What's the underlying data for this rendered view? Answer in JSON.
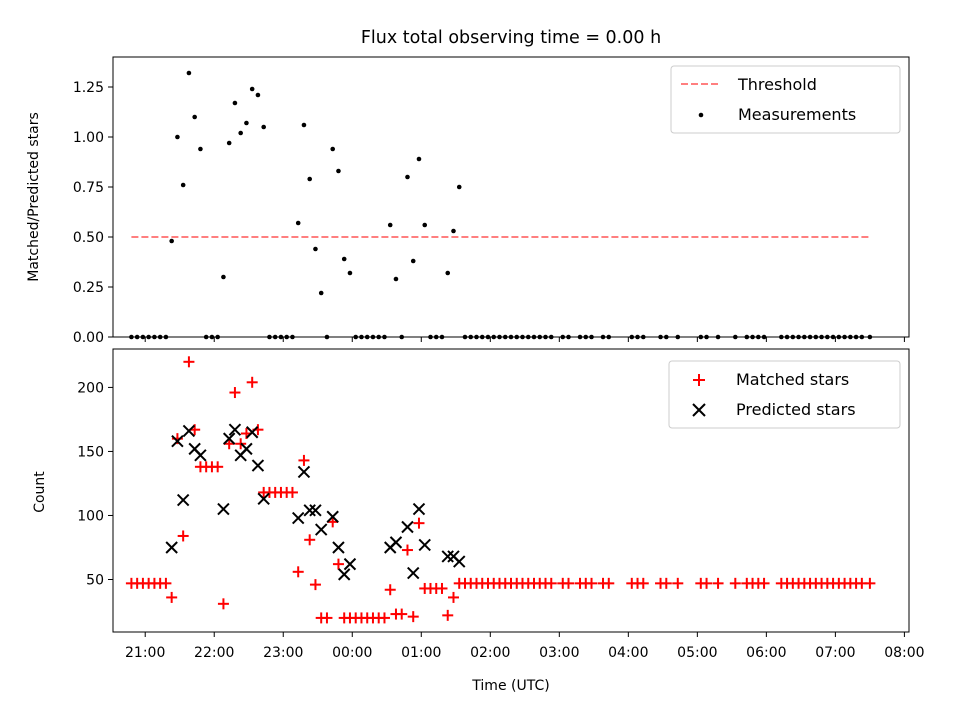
{
  "chart_data": [
    {
      "type": "scatter",
      "title": "Flux total observing time = 0.00 h",
      "xlabel": "",
      "ylabel": "Matched/Predicted stars",
      "xlim": [
        "20:32",
        "08:04"
      ],
      "ylim": [
        0,
        1.4
      ],
      "yticks": [
        0,
        0.25,
        0.5,
        0.75,
        1.0,
        1.25
      ],
      "ytick_labels": [
        "0.00",
        "0.25",
        "0.50",
        "0.75",
        "1.00",
        "1.25"
      ],
      "legend_position": "top-right",
      "series": [
        {
          "name": "Threshold",
          "style": "dashed-line",
          "color": "#ff7f7f",
          "x": [
            "20:48",
            "07:30"
          ],
          "y": [
            0.5,
            0.5
          ]
        },
        {
          "name": "Measurements",
          "style": "dot",
          "color": "#000000",
          "points": [
            [
              "20:48",
              0
            ],
            [
              "20:53",
              0
            ],
            [
              "20:58",
              0
            ],
            [
              "21:03",
              0
            ],
            [
              "21:08",
              0
            ],
            [
              "21:13",
              0
            ],
            [
              "21:18",
              0
            ],
            [
              "21:23",
              0.48
            ],
            [
              "21:28",
              1.0
            ],
            [
              "21:33",
              0.76
            ],
            [
              "21:38",
              1.32
            ],
            [
              "21:43",
              1.1
            ],
            [
              "21:48",
              0.94
            ],
            [
              "21:53",
              0
            ],
            [
              "21:58",
              0
            ],
            [
              "22:03",
              0
            ],
            [
              "22:08",
              0.3
            ],
            [
              "22:13",
              0.97
            ],
            [
              "22:18",
              1.17
            ],
            [
              "22:23",
              1.02
            ],
            [
              "22:28",
              1.07
            ],
            [
              "22:33",
              1.24
            ],
            [
              "22:38",
              1.21
            ],
            [
              "22:43",
              1.05
            ],
            [
              "22:48",
              0
            ],
            [
              "22:53",
              0
            ],
            [
              "22:58",
              0
            ],
            [
              "23:03",
              0
            ],
            [
              "23:08",
              0
            ],
            [
              "23:13",
              0.57
            ],
            [
              "23:18",
              1.06
            ],
            [
              "23:23",
              0.79
            ],
            [
              "23:28",
              0.44
            ],
            [
              "23:33",
              0.22
            ],
            [
              "23:38",
              0
            ],
            [
              "23:43",
              0.94
            ],
            [
              "23:48",
              0.83
            ],
            [
              "23:53",
              0.39
            ],
            [
              "23:58",
              0.32
            ],
            [
              "00:03",
              0
            ],
            [
              "00:08",
              0
            ],
            [
              "00:13",
              0
            ],
            [
              "00:18",
              0
            ],
            [
              "00:23",
              0
            ],
            [
              "00:28",
              0
            ],
            [
              "00:33",
              0.56
            ],
            [
              "00:38",
              0.29
            ],
            [
              "00:43",
              0
            ],
            [
              "00:48",
              0.8
            ],
            [
              "00:53",
              0.38
            ],
            [
              "00:58",
              0.89
            ],
            [
              "01:03",
              0.56
            ],
            [
              "01:08",
              0
            ],
            [
              "01:13",
              0
            ],
            [
              "01:18",
              0
            ],
            [
              "01:23",
              0.32
            ],
            [
              "01:28",
              0.53
            ],
            [
              "01:33",
              0.75
            ],
            [
              "01:38",
              0
            ],
            [
              "01:43",
              0
            ],
            [
              "01:48",
              0
            ],
            [
              "01:53",
              0
            ],
            [
              "01:58",
              0
            ],
            [
              "02:03",
              0
            ],
            [
              "02:08",
              0
            ],
            [
              "02:13",
              0
            ],
            [
              "02:18",
              0
            ],
            [
              "02:23",
              0
            ],
            [
              "02:28",
              0
            ],
            [
              "02:33",
              0
            ],
            [
              "02:38",
              0
            ],
            [
              "02:43",
              0
            ],
            [
              "02:48",
              0
            ],
            [
              "02:53",
              0
            ],
            [
              "03:03",
              0
            ],
            [
              "03:08",
              0
            ],
            [
              "03:18",
              0
            ],
            [
              "03:23",
              0
            ],
            [
              "03:28",
              0
            ],
            [
              "03:38",
              0
            ],
            [
              "03:43",
              0
            ],
            [
              "04:03",
              0
            ],
            [
              "04:08",
              0
            ],
            [
              "04:13",
              0
            ],
            [
              "04:28",
              0
            ],
            [
              "04:33",
              0
            ],
            [
              "04:43",
              0
            ],
            [
              "05:03",
              0
            ],
            [
              "05:08",
              0
            ],
            [
              "05:18",
              0
            ],
            [
              "05:33",
              0
            ],
            [
              "05:43",
              0
            ],
            [
              "05:48",
              0
            ],
            [
              "05:53",
              0
            ],
            [
              "05:58",
              0
            ],
            [
              "06:13",
              0
            ],
            [
              "06:18",
              0
            ],
            [
              "06:23",
              0
            ],
            [
              "06:28",
              0
            ],
            [
              "06:33",
              0
            ],
            [
              "06:38",
              0
            ],
            [
              "06:43",
              0
            ],
            [
              "06:48",
              0
            ],
            [
              "06:53",
              0
            ],
            [
              "06:58",
              0
            ],
            [
              "07:03",
              0
            ],
            [
              "07:08",
              0
            ],
            [
              "07:13",
              0
            ],
            [
              "07:18",
              0
            ],
            [
              "07:23",
              0
            ],
            [
              "07:30",
              0
            ]
          ]
        }
      ]
    },
    {
      "type": "scatter",
      "title": "",
      "xlabel": "Time (UTC)",
      "ylabel": "Count",
      "xlim": [
        "20:32",
        "08:04"
      ],
      "ylim": [
        9,
        230
      ],
      "xticks": [
        "21:00",
        "22:00",
        "23:00",
        "00:00",
        "01:00",
        "02:00",
        "03:00",
        "04:00",
        "05:00",
        "06:00",
        "07:00",
        "08:00"
      ],
      "yticks": [
        50,
        100,
        150,
        200
      ],
      "ytick_labels": [
        "50",
        "100",
        "150",
        "200"
      ],
      "legend_position": "top-right",
      "series": [
        {
          "name": "Matched stars",
          "marker": "plus",
          "color": "#ff0000",
          "points": [
            [
              "20:48",
              47
            ],
            [
              "20:53",
              47
            ],
            [
              "20:58",
              47
            ],
            [
              "21:03",
              47
            ],
            [
              "21:08",
              47
            ],
            [
              "21:13",
              47
            ],
            [
              "21:18",
              47
            ],
            [
              "21:23",
              36
            ],
            [
              "21:28",
              160
            ],
            [
              "21:33",
              84
            ],
            [
              "21:38",
              220
            ],
            [
              "21:43",
              167
            ],
            [
              "21:48",
              138
            ],
            [
              "21:53",
              138
            ],
            [
              "21:58",
              138
            ],
            [
              "22:03",
              138
            ],
            [
              "22:08",
              31
            ],
            [
              "22:13",
              156
            ],
            [
              "22:18",
              196
            ],
            [
              "22:23",
              156
            ],
            [
              "22:28",
              164
            ],
            [
              "22:33",
              204
            ],
            [
              "22:38",
              167
            ],
            [
              "22:43",
              118
            ],
            [
              "22:48",
              118
            ],
            [
              "22:53",
              118
            ],
            [
              "22:58",
              118
            ],
            [
              "23:03",
              118
            ],
            [
              "23:08",
              118
            ],
            [
              "23:13",
              56
            ],
            [
              "23:18",
              143
            ],
            [
              "23:23",
              81
            ],
            [
              "23:28",
              46
            ],
            [
              "23:33",
              20
            ],
            [
              "23:38",
              20
            ],
            [
              "23:43",
              95
            ],
            [
              "23:48",
              62
            ],
            [
              "23:53",
              20
            ],
            [
              "23:58",
              20
            ],
            [
              "00:03",
              20
            ],
            [
              "00:08",
              20
            ],
            [
              "00:13",
              20
            ],
            [
              "00:18",
              20
            ],
            [
              "00:23",
              20
            ],
            [
              "00:28",
              20
            ],
            [
              "00:33",
              42
            ],
            [
              "00:38",
              23
            ],
            [
              "00:43",
              23
            ],
            [
              "00:48",
              73
            ],
            [
              "00:53",
              21
            ],
            [
              "00:58",
              94
            ],
            [
              "01:03",
              43
            ],
            [
              "01:08",
              43
            ],
            [
              "01:13",
              43
            ],
            [
              "01:18",
              43
            ],
            [
              "01:23",
              22
            ],
            [
              "01:28",
              36
            ],
            [
              "01:33",
              47
            ],
            [
              "01:38",
              47
            ],
            [
              "01:43",
              47
            ],
            [
              "01:48",
              47
            ],
            [
              "01:53",
              47
            ],
            [
              "01:58",
              47
            ],
            [
              "02:03",
              47
            ],
            [
              "02:08",
              47
            ],
            [
              "02:13",
              47
            ],
            [
              "02:18",
              47
            ],
            [
              "02:23",
              47
            ],
            [
              "02:28",
              47
            ],
            [
              "02:33",
              47
            ],
            [
              "02:38",
              47
            ],
            [
              "02:43",
              47
            ],
            [
              "02:48",
              47
            ],
            [
              "02:53",
              47
            ],
            [
              "03:03",
              47
            ],
            [
              "03:08",
              47
            ],
            [
              "03:18",
              47
            ],
            [
              "03:23",
              47
            ],
            [
              "03:28",
              47
            ],
            [
              "03:38",
              47
            ],
            [
              "03:43",
              47
            ],
            [
              "04:03",
              47
            ],
            [
              "04:08",
              47
            ],
            [
              "04:13",
              47
            ],
            [
              "04:28",
              47
            ],
            [
              "04:33",
              47
            ],
            [
              "04:43",
              47
            ],
            [
              "05:03",
              47
            ],
            [
              "05:08",
              47
            ],
            [
              "05:18",
              47
            ],
            [
              "05:33",
              47
            ],
            [
              "05:43",
              47
            ],
            [
              "05:48",
              47
            ],
            [
              "05:53",
              47
            ],
            [
              "05:58",
              47
            ],
            [
              "06:13",
              47
            ],
            [
              "06:18",
              47
            ],
            [
              "06:23",
              47
            ],
            [
              "06:28",
              47
            ],
            [
              "06:33",
              47
            ],
            [
              "06:38",
              47
            ],
            [
              "06:43",
              47
            ],
            [
              "06:48",
              47
            ],
            [
              "06:53",
              47
            ],
            [
              "06:58",
              47
            ],
            [
              "07:03",
              47
            ],
            [
              "07:08",
              47
            ],
            [
              "07:13",
              47
            ],
            [
              "07:18",
              47
            ],
            [
              "07:23",
              47
            ],
            [
              "07:30",
              47
            ]
          ]
        },
        {
          "name": "Predicted stars",
          "marker": "x",
          "color": "#000000",
          "points": [
            [
              "21:23",
              75
            ],
            [
              "21:28",
              158
            ],
            [
              "21:33",
              112
            ],
            [
              "21:38",
              166
            ],
            [
              "21:43",
              152
            ],
            [
              "21:48",
              147
            ],
            [
              "22:08",
              105
            ],
            [
              "22:13",
              160
            ],
            [
              "22:18",
              167
            ],
            [
              "22:23",
              147
            ],
            [
              "22:28",
              152
            ],
            [
              "22:33",
              165
            ],
            [
              "22:38",
              139
            ],
            [
              "22:43",
              113
            ],
            [
              "23:13",
              98
            ],
            [
              "23:18",
              134
            ],
            [
              "23:23",
              104
            ],
            [
              "23:28",
              104
            ],
            [
              "23:33",
              89
            ],
            [
              "23:43",
              99
            ],
            [
              "23:48",
              75
            ],
            [
              "23:53",
              54
            ],
            [
              "23:58",
              62
            ],
            [
              "00:33",
              75
            ],
            [
              "00:38",
              79
            ],
            [
              "00:48",
              91
            ],
            [
              "00:53",
              55
            ],
            [
              "00:58",
              105
            ],
            [
              "01:03",
              77
            ],
            [
              "01:23",
              68
            ],
            [
              "01:28",
              68
            ],
            [
              "01:33",
              64
            ]
          ]
        }
      ]
    }
  ]
}
